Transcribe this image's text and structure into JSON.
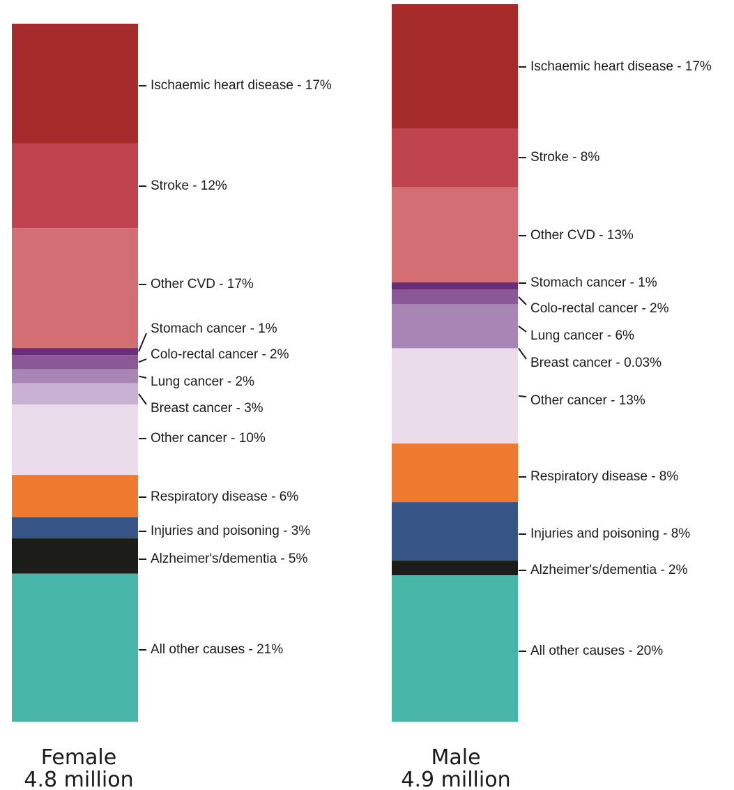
{
  "chart_data": [
    {
      "type": "stacked-bar",
      "title": "Female",
      "subtitle": "4.8 million",
      "unit": "%",
      "segments": [
        {
          "label": "Ischaemic heart disease - 17%",
          "category": "Ischaemic heart disease",
          "value": 17,
          "color": "#a62b2b"
        },
        {
          "label": "Stroke - 12%",
          "category": "Stroke",
          "value": 12,
          "color": "#c0444f"
        },
        {
          "label": "Other CVD - 17%",
          "category": "Other CVD",
          "value": 17,
          "color": "#d46e75"
        },
        {
          "label": "Stomach cancer - 1%",
          "category": "Stomach cancer",
          "value": 1,
          "color": "#6a2d7c"
        },
        {
          "label": "Colo-rectal cancer - 2%",
          "category": "Colo-rectal cancer",
          "value": 2,
          "color": "#8a5897"
        },
        {
          "label": "Lung cancer - 2%",
          "category": "Lung cancer",
          "value": 2,
          "color": "#a785b5"
        },
        {
          "label": "Breast cancer - 3%",
          "category": "Breast cancer",
          "value": 3,
          "color": "#c9b1d3"
        },
        {
          "label": "Other cancer - 10%",
          "category": "Other cancer",
          "value": 10,
          "color": "#eadceb"
        },
        {
          "label": "Respiratory disease - 6%",
          "category": "Respiratory disease",
          "value": 6,
          "color": "#ee7a30"
        },
        {
          "label": "Injuries and poisoning - 3%",
          "category": "Injuries and poisoning",
          "value": 3,
          "color": "#365486"
        },
        {
          "label": "Alzheimer's/dementia - 5%",
          "category": "Alzheimer's/dementia",
          "value": 5,
          "color": "#1c1c1a"
        },
        {
          "label": "All other causes - 21%",
          "category": "All other causes",
          "value": 21,
          "color": "#47b5a8"
        }
      ]
    },
    {
      "type": "stacked-bar",
      "title": "Male",
      "subtitle": "4.9 million",
      "unit": "%",
      "segments": [
        {
          "label": "Ischaemic heart disease - 17%",
          "category": "Ischaemic heart disease",
          "value": 17,
          "color": "#a62b2b"
        },
        {
          "label": "Stroke - 8%",
          "category": "Stroke",
          "value": 8,
          "color": "#c0444f"
        },
        {
          "label": "Other CVD - 13%",
          "category": "Other CVD",
          "value": 13,
          "color": "#d46e75"
        },
        {
          "label": "Stomach cancer - 1%",
          "category": "Stomach cancer",
          "value": 1,
          "color": "#6a2d7c"
        },
        {
          "label": "Colo-rectal cancer - 2%",
          "category": "Colo-rectal cancer",
          "value": 2,
          "color": "#8a5897"
        },
        {
          "label": "Lung cancer - 6%",
          "category": "Lung cancer",
          "value": 6,
          "color": "#a785b5"
        },
        {
          "label": "Breast cancer - 0.03%",
          "category": "Breast cancer",
          "value": 0.03,
          "color": "#c9b1d3"
        },
        {
          "label": "Other cancer - 13%",
          "category": "Other cancer",
          "value": 13,
          "color": "#eadceb"
        },
        {
          "label": "Respiratory disease - 8%",
          "category": "Respiratory disease",
          "value": 8,
          "color": "#ee7a30"
        },
        {
          "label": "Injuries and poisoning - 8%",
          "category": "Injuries and poisoning",
          "value": 8,
          "color": "#365486"
        },
        {
          "label": "Alzheimer's/dementia - 2%",
          "category": "Alzheimer's/dementia",
          "value": 2,
          "color": "#1c1c1a"
        },
        {
          "label": "All other causes - 20%",
          "category": "All other causes",
          "value": 20,
          "color": "#47b5a8"
        }
      ]
    }
  ]
}
